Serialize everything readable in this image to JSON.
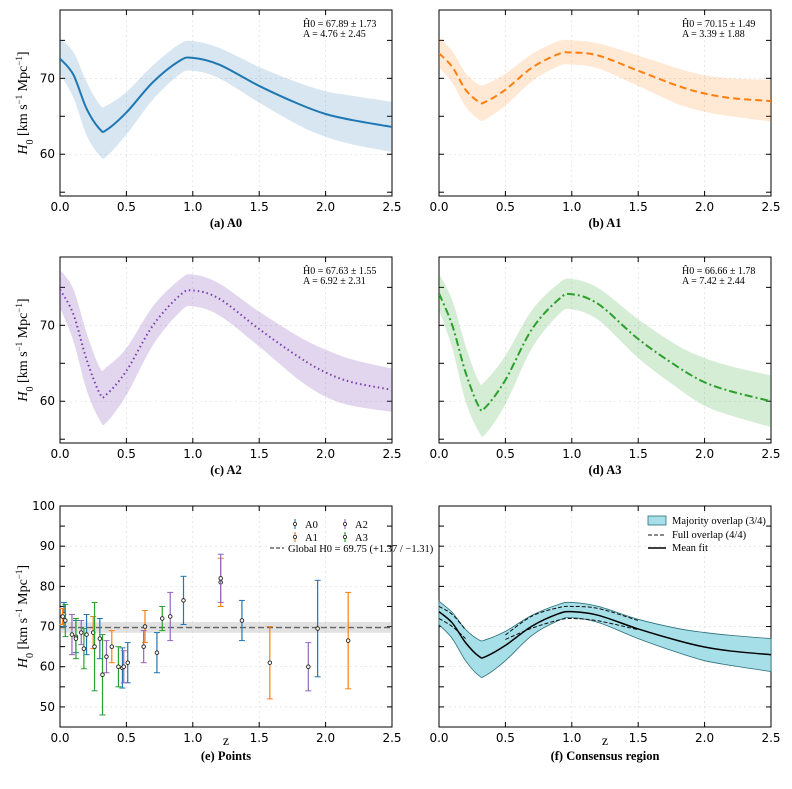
{
  "chart_data": [
    {
      "type": "line",
      "panel": "a",
      "caption": "(a) A0",
      "color": "#1f77b4",
      "dash": "solid",
      "ylabel": "H0 [km s^-1 Mpc^-1]",
      "y_ticks": [
        "60",
        "70"
      ],
      "ylim": [
        54.5,
        79
      ],
      "xlim": [
        0,
        2.5
      ],
      "x_ticks": [
        "0.0",
        "0.5",
        "1.0",
        "1.5",
        "2.0",
        "2.5"
      ],
      "annotation": [
        "Ĥ0 = 67.89 ± 1.73",
        "A = 4.76 ± 2.45"
      ],
      "x": [
        0,
        0.1,
        0.2,
        0.3,
        0.35,
        0.5,
        0.7,
        0.9,
        1.0,
        1.2,
        1.5,
        1.8,
        2.0,
        2.2,
        2.5
      ],
      "mean": [
        72.6,
        70.5,
        66.0,
        63.3,
        63.2,
        65.5,
        69.5,
        72.3,
        72.7,
        71.8,
        69.0,
        66.6,
        65.3,
        64.5,
        63.6
      ],
      "band_low": [
        70.6,
        67.5,
        62.5,
        59.8,
        59.7,
        62.6,
        67.2,
        70.5,
        71.0,
        70.0,
        66.8,
        63.8,
        62.3,
        61.3,
        60.3
      ],
      "band_high": [
        75.2,
        73.5,
        69.5,
        66.5,
        66.4,
        68.2,
        71.7,
        74.5,
        74.9,
        74.0,
        71.5,
        69.4,
        68.3,
        67.7,
        66.9
      ]
    },
    {
      "type": "line",
      "panel": "b",
      "caption": "(b) A1",
      "color": "#ff7f0e",
      "dash": "dashed",
      "y_ticks": [],
      "ylim": [
        54.5,
        79
      ],
      "xlim": [
        0,
        2.5
      ],
      "x_ticks": [
        "0.0",
        "0.5",
        "1.0",
        "1.5",
        "2.0",
        "2.5"
      ],
      "annotation": [
        "Ĥ0 = 70.15 ± 1.49",
        "A = 3.39 ± 1.88"
      ],
      "x": [
        0,
        0.1,
        0.2,
        0.3,
        0.35,
        0.5,
        0.7,
        0.9,
        1.0,
        1.2,
        1.5,
        1.8,
        2.0,
        2.2,
        2.5
      ],
      "mean": [
        73.3,
        71.5,
        68.5,
        66.9,
        66.9,
        68.5,
        71.4,
        73.2,
        73.4,
        73.0,
        71.0,
        69.0,
        68.0,
        67.4,
        67.0
      ],
      "band_low": [
        71.5,
        69.4,
        66.3,
        64.6,
        64.6,
        66.4,
        69.6,
        71.6,
        71.8,
        71.3,
        69.0,
        66.6,
        65.6,
        65.0,
        64.3
      ],
      "band_high": [
        75.4,
        73.6,
        70.7,
        69.2,
        69.2,
        70.6,
        73.2,
        74.9,
        75.0,
        74.6,
        73.0,
        71.3,
        70.4,
        70.0,
        69.8
      ]
    },
    {
      "type": "line",
      "panel": "c",
      "caption": "(c) A2",
      "color": "#7b3fb0",
      "dash": "dotted",
      "ylabel": "H0 [km s^-1 Mpc^-1]",
      "y_ticks": [
        "60",
        "70"
      ],
      "ylim": [
        54.5,
        79
      ],
      "xlim": [
        0,
        2.5
      ],
      "x_ticks": [
        "0.0",
        "0.5",
        "1.0",
        "1.5",
        "2.0",
        "2.5"
      ],
      "annotation": [
        "Ĥ0 = 67.63 ± 1.55",
        "A = 6.92 ± 2.31"
      ],
      "x": [
        0,
        0.1,
        0.2,
        0.3,
        0.35,
        0.5,
        0.7,
        0.9,
        1.0,
        1.2,
        1.5,
        1.8,
        2.0,
        2.2,
        2.5
      ],
      "mean": [
        74.7,
        71.5,
        65.5,
        61.0,
        60.9,
        64.0,
        70.0,
        73.9,
        74.6,
        73.5,
        69.5,
        65.8,
        63.8,
        62.5,
        61.5
      ],
      "band_low": [
        72.3,
        68.0,
        61.5,
        57.5,
        57.2,
        60.8,
        67.4,
        71.7,
        72.5,
        71.3,
        67.2,
        62.8,
        60.6,
        59.4,
        58.6
      ],
      "band_high": [
        77.3,
        74.8,
        69.0,
        64.4,
        64.5,
        67.0,
        72.5,
        76.0,
        76.7,
        75.5,
        71.8,
        68.5,
        66.8,
        65.5,
        64.3
      ]
    },
    {
      "type": "line",
      "panel": "d",
      "caption": "(d) A3",
      "color": "#2ca02c",
      "dash": "dashdot",
      "y_ticks": [],
      "ylim": [
        54.5,
        79
      ],
      "xlim": [
        0,
        2.5
      ],
      "x_ticks": [
        "0.0",
        "0.5",
        "1.0",
        "1.5",
        "2.0",
        "2.5"
      ],
      "annotation": [
        "Ĥ0 = 66.66 ± 1.78",
        "A = 7.42 ± 2.44"
      ],
      "x": [
        0,
        0.1,
        0.2,
        0.3,
        0.35,
        0.5,
        0.7,
        0.9,
        1.0,
        1.2,
        1.5,
        1.8,
        2.0,
        2.2,
        2.5
      ],
      "mean": [
        74.2,
        70.0,
        63.8,
        59.3,
        59.2,
        62.8,
        69.5,
        73.4,
        74.1,
        72.8,
        68.2,
        64.5,
        62.5,
        61.3,
        60.0
      ],
      "band_low": [
        72.0,
        67.0,
        60.0,
        56.0,
        55.7,
        59.6,
        67.0,
        71.4,
        72.1,
        70.7,
        65.7,
        61.7,
        59.4,
        58.1,
        56.6
      ],
      "band_high": [
        76.8,
        73.3,
        67.3,
        62.6,
        62.7,
        66.0,
        72.0,
        75.5,
        76.1,
        74.9,
        70.8,
        67.3,
        65.7,
        64.6,
        63.4
      ]
    },
    {
      "type": "scatter",
      "panel": "e",
      "caption": "(e) Points",
      "xlabel": "z",
      "ylabel": "H0 [km s^-1 Mpc^-1]",
      "ylim": [
        45,
        100
      ],
      "xlim": [
        0,
        2.5
      ],
      "y_ticks": [
        "50",
        "60",
        "70",
        "80",
        "90",
        "100"
      ],
      "x_ticks": [
        "0.0",
        "0.5",
        "1.0",
        "1.5",
        "2.0",
        "2.5"
      ],
      "global_label": "Global H0 = 69.75 (+1.37 / −1.31)",
      "global_h0": 69.75,
      "global_band": [
        68.44,
        71.12
      ],
      "series": [
        {
          "name": "A0",
          "color": "#1f77b4",
          "points": [
            [
              0.03,
              73.0,
              3
            ],
            [
              0.12,
              67.5,
              4
            ],
            [
              0.2,
              68.0,
              5
            ],
            [
              0.3,
              67.0,
              5
            ],
            [
              0.47,
              59.7,
              5
            ],
            [
              0.51,
              61.0,
              5
            ],
            [
              0.73,
              63.5,
              5
            ],
            [
              0.93,
              76.5,
              6
            ],
            [
              1.37,
              71.5,
              5
            ],
            [
              1.94,
              69.5,
              12
            ]
          ]
        },
        {
          "name": "A1",
          "color": "#ff7f0e",
          "points": [
            [
              0.02,
              72.5,
              2
            ],
            [
              0.25,
              68.5,
              4
            ],
            [
              0.39,
              65.0,
              4
            ],
            [
              0.64,
              70.0,
              4
            ],
            [
              1.21,
              81.0,
              6
            ],
            [
              1.58,
              61.0,
              9
            ],
            [
              2.17,
              66.5,
              12
            ]
          ]
        },
        {
          "name": "A2",
          "color": "#9467bd",
          "points": [
            [
              0.09,
              68.0,
              5
            ],
            [
              0.16,
              68.5,
              3
            ],
            [
              0.35,
              62.5,
              4
            ],
            [
              0.48,
              60.0,
              4
            ],
            [
              0.63,
              65.0,
              4
            ],
            [
              0.83,
              72.5,
              6
            ],
            [
              1.21,
              82.0,
              6
            ],
            [
              1.87,
              60.0,
              6
            ]
          ]
        },
        {
          "name": "A3",
          "color": "#2ca02c",
          "points": [
            [
              0.04,
              71.5,
              4
            ],
            [
              0.12,
              67.0,
              5
            ],
            [
              0.18,
              64.5,
              5
            ],
            [
              0.26,
              65.0,
              11
            ],
            [
              0.32,
              58.0,
              10
            ],
            [
              0.44,
              60.0,
              5
            ],
            [
              0.77,
              72.0,
              3
            ]
          ]
        }
      ]
    },
    {
      "type": "area",
      "panel": "f",
      "caption": "(f) Consensus region",
      "xlabel": "z",
      "y_ticks": [],
      "ylim": [
        45,
        100
      ],
      "xlim": [
        0,
        2.5
      ],
      "x_ticks": [
        "0.0",
        "0.5",
        "1.0",
        "1.5",
        "2.0",
        "2.5"
      ],
      "legend": [
        "Majority overlap (3/4)",
        "Full overlap (4/4)",
        "Mean fit"
      ],
      "x": [
        0,
        0.1,
        0.2,
        0.3,
        0.35,
        0.5,
        0.7,
        0.9,
        1.0,
        1.2,
        1.5,
        1.8,
        2.0,
        2.2,
        2.5
      ],
      "majority_low": [
        70.5,
        67.0,
        61.5,
        57.8,
        57.8,
        61.5,
        67.8,
        71.5,
        72.2,
        71.0,
        67.0,
        63.5,
        61.5,
        60.3,
        58.8
      ],
      "majority_high": [
        76.3,
        73.5,
        69.3,
        66.7,
        66.7,
        68.8,
        72.8,
        75.5,
        76.0,
        75.0,
        71.8,
        69.5,
        68.5,
        67.8,
        67.0
      ],
      "full_low": [
        72.0,
        70.0,
        67.0,
        null,
        null,
        66.8,
        69.6,
        71.6,
        72.0,
        71.4,
        69.2,
        null,
        null,
        null,
        null
      ],
      "full_high": [
        75.0,
        73.0,
        69.2,
        null,
        null,
        67.9,
        72.6,
        74.7,
        75.0,
        74.5,
        71.5,
        null,
        null,
        null,
        null
      ],
      "mean": [
        73.7,
        70.9,
        66.0,
        62.6,
        62.5,
        65.3,
        70.1,
        73.2,
        73.7,
        72.8,
        69.4,
        66.5,
        64.9,
        63.9,
        63.0
      ]
    }
  ]
}
